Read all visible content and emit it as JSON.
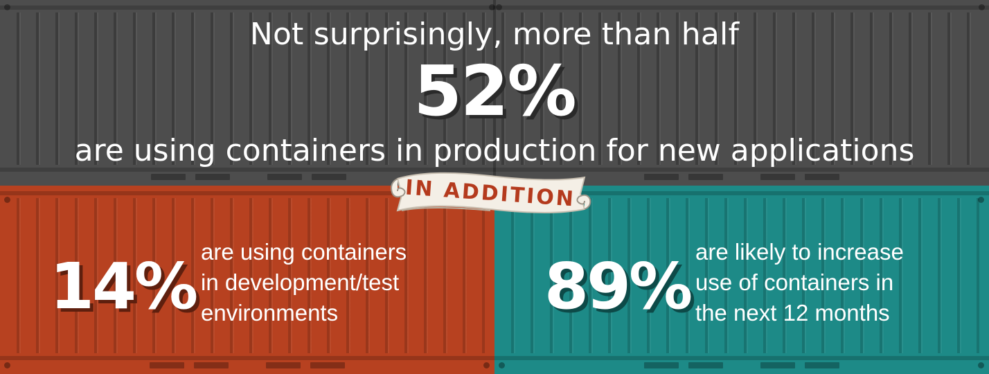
{
  "colors": {
    "top_panel": "#4d4d4d",
    "left_panel": "#b74120",
    "right_panel": "#1d8a87",
    "banner_text": "#b43a1d",
    "text": "#ffffff"
  },
  "headline": "Not surprisingly, more than half",
  "headline_stat": "52%",
  "subline": "are using containers in production for new applications",
  "banner": "IN ADDITION",
  "left": {
    "stat": "14%",
    "lines": [
      "are using containers",
      "in development/test",
      "environments"
    ]
  },
  "right": {
    "stat": "89%",
    "lines": [
      "are likely to increase",
      "use of containers in",
      "the next 12 months"
    ]
  }
}
